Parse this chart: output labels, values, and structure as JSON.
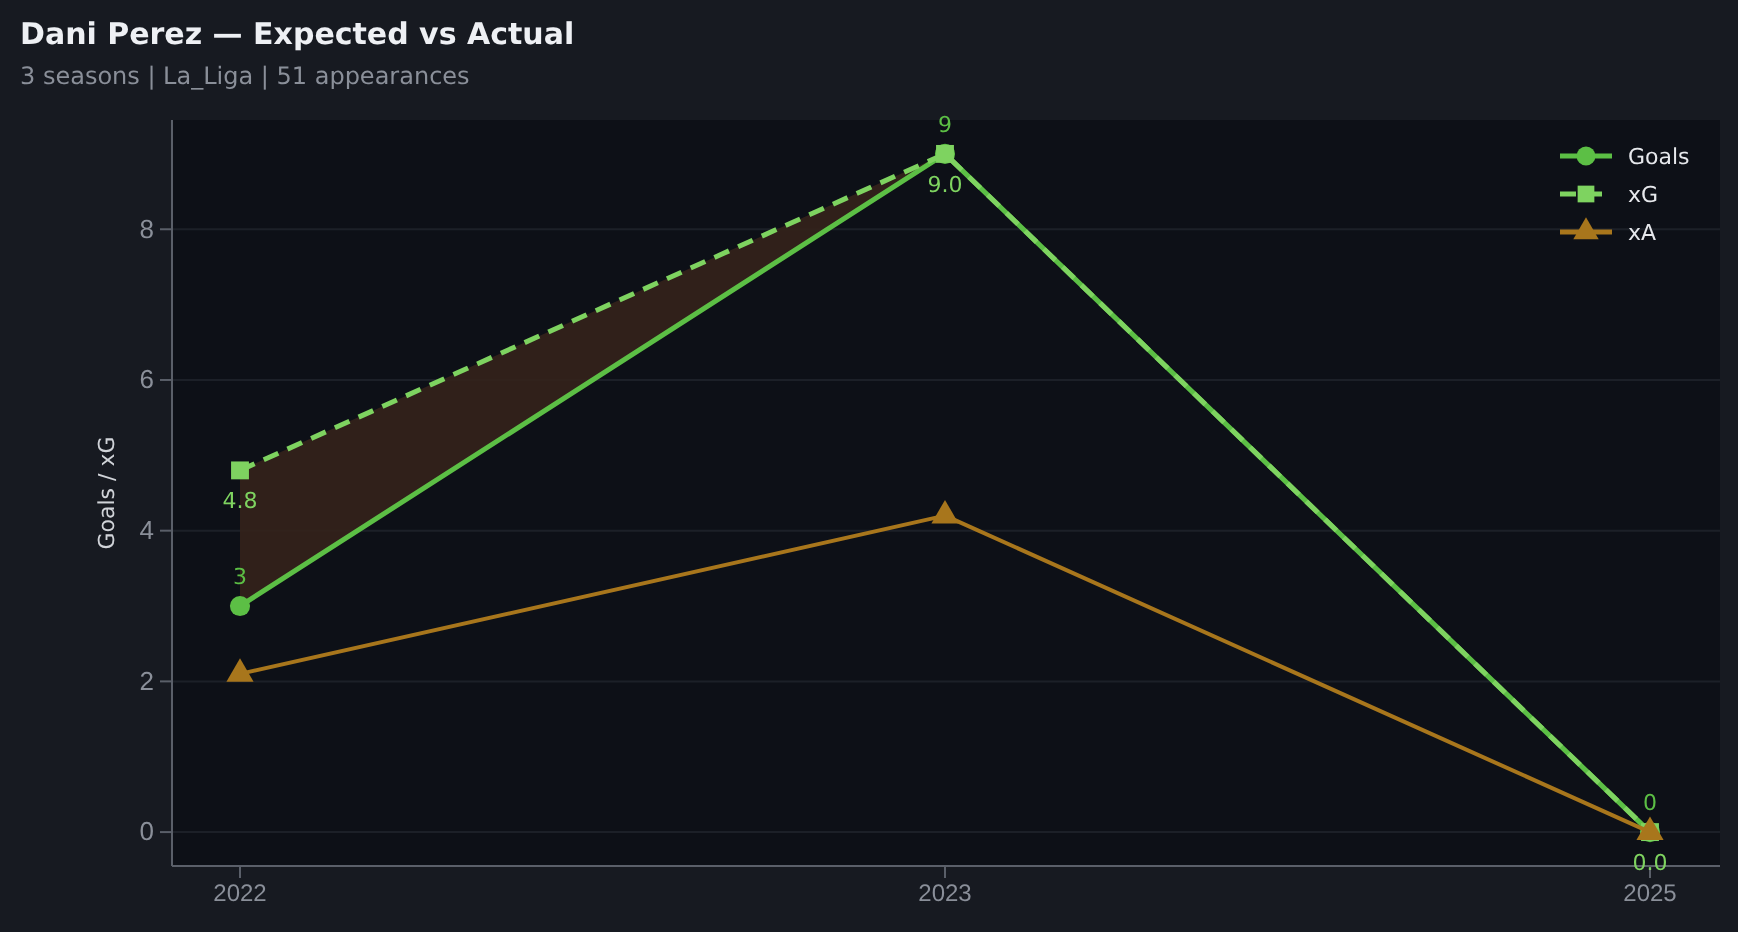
{
  "chart_data": {
    "type": "line",
    "title": "Dani Perez — Expected vs Actual",
    "subtitle": "3 seasons | La_Liga | 51 appearances",
    "ylabel": "Goals / xG",
    "categories": [
      "2022",
      "2023",
      "2025"
    ],
    "series": [
      {
        "name": "Goals",
        "color": "#5cbf45",
        "values": [
          3,
          9,
          0
        ],
        "marker": "circle",
        "line_style": "solid",
        "value_labels": [
          "3",
          "9",
          "0"
        ]
      },
      {
        "name": "xG",
        "color": "#7ed360",
        "values": [
          4.8,
          9.0,
          0.0
        ],
        "marker": "square",
        "line_style": "dashed",
        "value_labels": [
          "4.8",
          "9.0",
          "0.0"
        ],
        "lower": [
          3,
          9,
          0
        ],
        "upper": [
          4.8,
          9.0,
          0.0
        ]
      },
      {
        "name": "xA",
        "color": "#a8761c",
        "values": [
          2.1,
          4.2,
          0.0
        ],
        "marker": "triangle",
        "line_style": "solid"
      }
    ],
    "ylim": [
      -0.45,
      9.45
    ],
    "yticks": [
      0,
      2,
      4,
      6,
      8
    ],
    "grid": "y",
    "legend": "top right"
  }
}
